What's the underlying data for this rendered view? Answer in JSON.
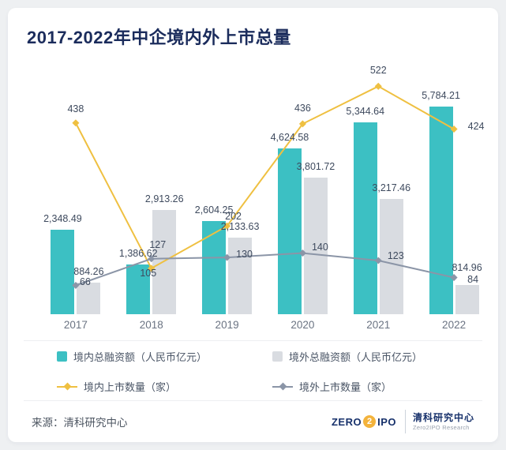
{
  "title": "2017-2022年中企境内外上市总量",
  "source": "来源：清科研究中心",
  "logo": {
    "zero": "ZERO",
    "two": "2",
    "ipo": "IPO",
    "cn": "清科研究中心",
    "en": "Zero2IPO Research"
  },
  "colors": {
    "page_bg": "#eef0f2",
    "card_bg": "#ffffff",
    "title": "#1b2c5c",
    "domestic_bar": "#3cc0c3",
    "overseas_bar": "#d9dce1",
    "domestic_line": "#efc041",
    "overseas_line": "#8b95a7",
    "value_label": "#3e4a5e",
    "axis_label": "#6a7382",
    "legend_text": "#4a5566",
    "divider": "#edeff2",
    "source_text": "#4c5561",
    "logo_navy": "#17316b",
    "logo_gold": "#f3b33c",
    "logo_gray": "#98a0ad"
  },
  "chart_data": {
    "type": "bar+line",
    "title": "2017-2022年中企境内外上市总量",
    "categories": [
      "2017",
      "2018",
      "2019",
      "2020",
      "2021",
      "2022"
    ],
    "series": [
      {
        "key": "domestic_bar",
        "name": "境内总融资额（人民币亿元）",
        "type": "bar",
        "values": [
          2348.49,
          1386.62,
          2604.25,
          4624.58,
          5344.64,
          5784.21
        ],
        "labels": [
          "2,348.49",
          "1,386.62",
          "2,604.25",
          "4,624.58",
          "5,344.64",
          "5,784.21"
        ]
      },
      {
        "key": "overseas_bar",
        "name": "境外总融资额（人民币亿元）",
        "type": "bar",
        "values": [
          884.26,
          2913.26,
          2133.63,
          3801.72,
          3217.46,
          814.96
        ],
        "labels": [
          "884.26",
          "2,913.26",
          "2,133.63",
          "3,801.72",
          "3,217.46",
          "814.96"
        ]
      },
      {
        "key": "domestic_line",
        "name": "境内上市数量（家）",
        "type": "line",
        "values": [
          438,
          105,
          202,
          436,
          522,
          424
        ],
        "labels": [
          "438",
          "105",
          "202",
          "436",
          "522",
          "424"
        ]
      },
      {
        "key": "overseas_line",
        "name": "境外上市数量（家）",
        "type": "line",
        "values": [
          66,
          127,
          130,
          140,
          123,
          84
        ],
        "labels": [
          "66",
          "127",
          "130",
          "140",
          "123",
          "84"
        ]
      }
    ],
    "bar_axis_max": 7000,
    "line_axis_max": 575,
    "grid": false,
    "legend_position": "bottom"
  }
}
